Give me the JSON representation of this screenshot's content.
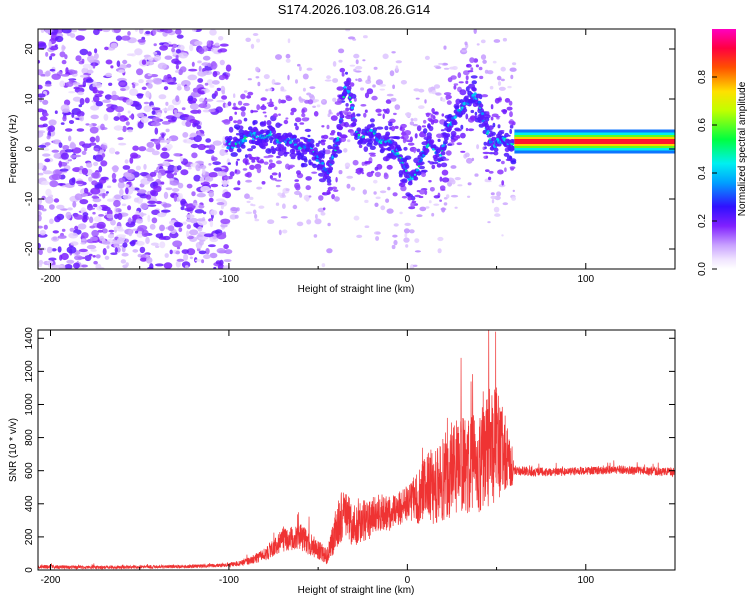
{
  "title": "S174.2026.103.08.26.G14",
  "chart_data": [
    {
      "type": "heatmap",
      "xlabel": "Height of straight line (km)",
      "ylabel": "Frequency (Hz)",
      "xlim": [
        -207,
        150
      ],
      "ylim": [
        -24,
        24
      ],
      "xticks": [
        "-200",
        "-100",
        "0",
        "100"
      ],
      "xtick_values": [
        -200,
        -100,
        0,
        100
      ],
      "yticks": [
        "20",
        "10",
        "0",
        "-10",
        "-20"
      ],
      "ytick_values": [
        20,
        10,
        0,
        -10,
        -20
      ],
      "colorbar": {
        "label": "Normalized spectral amplitude",
        "range": [
          0,
          1
        ],
        "ticks": [
          "0.0",
          "0.2",
          "0.4",
          "0.6",
          "0.8"
        ],
        "tick_values": [
          0.0,
          0.2,
          0.4,
          0.6,
          0.8
        ],
        "colormap": "white-purple-blue-cyan-green-yellow-red-magenta"
      },
      "ridge": {
        "x": [
          -101,
          -95,
          -88,
          -82,
          -76,
          -70,
          -65,
          -60,
          -55,
          -50,
          -45,
          -40,
          -37,
          -35,
          -33,
          -31,
          -29,
          -26,
          -23,
          -20,
          -17,
          -14,
          -11,
          -8,
          -5,
          -2,
          0,
          3,
          6,
          9,
          12,
          15,
          18,
          20,
          22,
          24,
          26,
          28,
          30,
          33,
          36,
          39,
          42,
          44,
          46,
          48,
          50,
          52,
          55,
          58,
          61,
          150
        ],
        "y": [
          1,
          1,
          3,
          2,
          3,
          1,
          2,
          0,
          1,
          -2,
          -5,
          0,
          6,
          13,
          12,
          8,
          4,
          2,
          3,
          4,
          2,
          1,
          2,
          0,
          -1,
          -3,
          -5,
          -6,
          -4,
          -1,
          1,
          0,
          -2,
          0,
          3,
          5,
          6,
          7,
          8,
          9,
          11,
          10,
          7,
          4,
          2,
          1,
          1,
          2,
          2,
          1,
          1,
          1
        ]
      },
      "band": {
        "x_start": 60,
        "x_end": 150,
        "frequency": 1.5,
        "amplitude": 1.0
      }
    },
    {
      "type": "line",
      "xlabel": "Height of straight line (km)",
      "ylabel": "SNR (10 * v/v)",
      "xlim": [
        -207,
        150
      ],
      "ylim": [
        0,
        1450
      ],
      "xticks": [
        "-200",
        "-100",
        "0",
        "100"
      ],
      "xtick_values": [
        -200,
        -100,
        0,
        100
      ],
      "yticks": [
        "0",
        "200",
        "400",
        "600",
        "800",
        "1000",
        "1200",
        "1400"
      ],
      "ytick_values": [
        0,
        200,
        400,
        600,
        800,
        1000,
        1200,
        1400
      ],
      "color": "#ef3333",
      "series": [
        {
          "x": [
            -207,
            -180,
            -150,
            -120,
            -100,
            -90,
            -80,
            -70,
            -60,
            -50,
            -45,
            -40,
            -35,
            -30,
            -25,
            -20,
            -15,
            -10,
            -5,
            0,
            5,
            10,
            15,
            20,
            25,
            30,
            35,
            40,
            45,
            50,
            55,
            58,
            60,
            80,
            100,
            120,
            150
          ],
          "values": [
            20,
            15,
            18,
            22,
            30,
            50,
            90,
            180,
            200,
            120,
            80,
            250,
            360,
            260,
            300,
            310,
            350,
            340,
            370,
            400,
            430,
            470,
            520,
            560,
            590,
            620,
            640,
            660,
            720,
            760,
            680,
            620,
            600,
            590,
            600,
            605,
            590
          ],
          "spread": [
            25,
            20,
            20,
            20,
            25,
            40,
            80,
            140,
            160,
            120,
            100,
            280,
            330,
            260,
            260,
            240,
            230,
            210,
            200,
            220,
            300,
            420,
            480,
            520,
            560,
            600,
            620,
            640,
            680,
            700,
            520,
            300,
            60,
            50,
            50,
            50,
            55
          ],
          "peak": {
            "x": 49.5,
            "y": 1440
          }
        }
      ]
    }
  ]
}
